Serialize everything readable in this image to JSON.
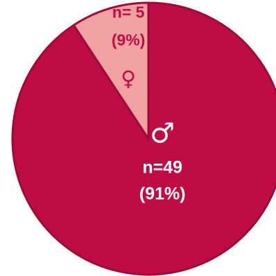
{
  "chart_data": {
    "type": "pie",
    "slices": [
      {
        "symbol": "♂",
        "count_label": "n=49",
        "pct_label": "(91%)",
        "value": 49,
        "percent": 91,
        "color": "#c00c44",
        "label_color": "#ffffff"
      },
      {
        "symbol": "♀",
        "count_label": "n= 5",
        "pct_label": "(9%)",
        "value": 5,
        "percent": 9,
        "color": "#f1a1a1",
        "label_color": "#c00c44"
      }
    ],
    "start": "top",
    "direction": "clockwise",
    "slice_stroke": "#9e0b3a"
  }
}
